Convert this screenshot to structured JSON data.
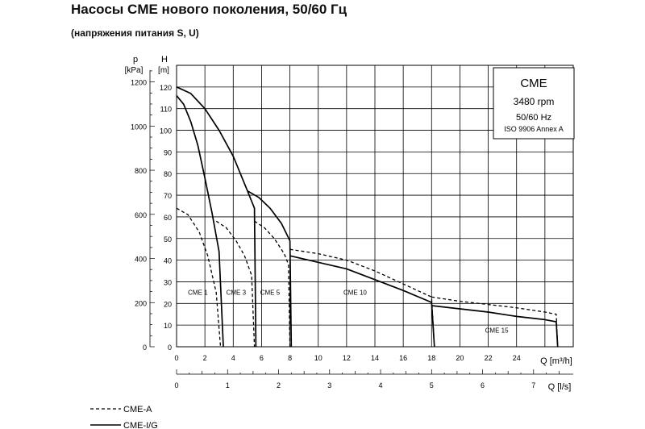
{
  "header": {
    "title": "Насосы CME нового поколения, 50/60 Гц",
    "subtitle": "(напряжения питания S, U)"
  },
  "chart_data": {
    "type": "line",
    "axes": {
      "p_label_symbol": "p",
      "p_label_unit": "[kPa]",
      "p_ticks": [
        0,
        200,
        400,
        600,
        800,
        1000,
        1200
      ],
      "h_label_symbol": "H",
      "h_label_unit": "[m]",
      "h_ticks": [
        0,
        10,
        20,
        30,
        40,
        50,
        60,
        70,
        80,
        90,
        100,
        110,
        120
      ],
      "h_range": [
        0,
        130
      ],
      "q_m3h_label": "Q [m³/h]",
      "q_m3h_ticks": [
        0,
        2,
        4,
        6,
        8,
        10,
        12,
        14,
        16,
        18,
        20,
        22,
        24
      ],
      "q_m3h_range": [
        0,
        28
      ],
      "q_ls_label": "Q [l/s]",
      "q_ls_ticks": [
        0,
        1,
        2,
        3,
        4,
        5,
        6,
        7
      ]
    },
    "grid": true,
    "info_box": {
      "name": "CME",
      "speed": "3480 rpm",
      "freq": "50/60 Hz",
      "standard": "ISO 9906 Annex A"
    },
    "model_labels": [
      {
        "text": "CME 1",
        "q": 1.5,
        "h": 24
      },
      {
        "text": "CME 3",
        "q": 4.2,
        "h": 24
      },
      {
        "text": "CME 5",
        "q": 6.6,
        "h": 24
      },
      {
        "text": "CME 10",
        "q": 12.6,
        "h": 24
      },
      {
        "text": "CME 15",
        "q": 22.6,
        "h": 6.5
      }
    ],
    "series": [
      {
        "name": "CME-A",
        "style": "dashed",
        "points": [
          [
            0,
            64
          ],
          [
            0.8,
            61
          ],
          [
            1.6,
            53
          ],
          [
            2.2,
            42
          ],
          [
            2.8,
            25
          ],
          [
            3.1,
            0
          ]
        ]
      },
      {
        "name": "CME-I/G",
        "style": "solid",
        "points": [
          [
            0,
            116
          ],
          [
            0.5,
            112
          ],
          [
            1.0,
            104
          ],
          [
            1.5,
            93
          ],
          [
            2.0,
            78
          ],
          [
            2.5,
            62
          ],
          [
            3.0,
            44
          ],
          [
            3.3,
            0
          ]
        ]
      },
      {
        "name": "CME-A",
        "style": "dashed",
        "points": [
          [
            2.8,
            58
          ],
          [
            3.5,
            55
          ],
          [
            4.2,
            49
          ],
          [
            4.8,
            42
          ],
          [
            5.3,
            33
          ],
          [
            5.5,
            0
          ]
        ]
      },
      {
        "name": "CME-I/G",
        "style": "solid",
        "points": [
          [
            0,
            120
          ],
          [
            1.0,
            117
          ],
          [
            2.0,
            110
          ],
          [
            3.0,
            100
          ],
          [
            4.0,
            88
          ],
          [
            4.5,
            80
          ],
          [
            5.0,
            72
          ],
          [
            5.5,
            64
          ],
          [
            5.6,
            0
          ]
        ]
      },
      {
        "name": "CME-A",
        "style": "dashed",
        "points": [
          [
            5.5,
            58
          ],
          [
            6.2,
            55
          ],
          [
            6.9,
            50
          ],
          [
            7.6,
            43
          ],
          [
            7.9,
            38
          ],
          [
            8.0,
            0
          ]
        ]
      },
      {
        "name": "CME-I/G",
        "style": "solid",
        "points": [
          [
            5.0,
            72
          ],
          [
            5.8,
            69
          ],
          [
            6.6,
            64
          ],
          [
            7.4,
            57
          ],
          [
            8.0,
            49
          ],
          [
            8.1,
            0
          ]
        ]
      },
      {
        "name": "CME-A",
        "style": "dashed",
        "points": [
          [
            8.0,
            45
          ],
          [
            10.0,
            43
          ],
          [
            12.0,
            40
          ],
          [
            14.0,
            35
          ],
          [
            16.0,
            29
          ],
          [
            18.0,
            23
          ],
          [
            18.2,
            0
          ]
        ]
      },
      {
        "name": "CME-I/G",
        "style": "solid",
        "points": [
          [
            8.0,
            42
          ],
          [
            10.0,
            39
          ],
          [
            12.0,
            36
          ],
          [
            14.0,
            31
          ],
          [
            16.0,
            26
          ],
          [
            18.0,
            20.5
          ],
          [
            18.2,
            0
          ]
        ]
      },
      {
        "name": "CME-A",
        "style": "dashed",
        "points": [
          [
            18.0,
            23
          ],
          [
            20.0,
            21
          ],
          [
            22.0,
            19.5
          ],
          [
            24.0,
            18
          ],
          [
            26.0,
            16
          ],
          [
            26.8,
            15
          ],
          [
            26.9,
            0
          ]
        ]
      },
      {
        "name": "CME-I/G",
        "style": "solid",
        "points": [
          [
            18.0,
            19
          ],
          [
            20.0,
            17.5
          ],
          [
            22.0,
            16
          ],
          [
            24.0,
            14
          ],
          [
            26.0,
            12.5
          ],
          [
            26.8,
            11.5
          ],
          [
            26.9,
            0
          ]
        ]
      }
    ],
    "legend": {
      "placement": "bottom-left",
      "items": [
        {
          "label": "CME-A",
          "style": "dashed"
        },
        {
          "label": "CME-I/G",
          "style": "solid"
        }
      ]
    }
  }
}
